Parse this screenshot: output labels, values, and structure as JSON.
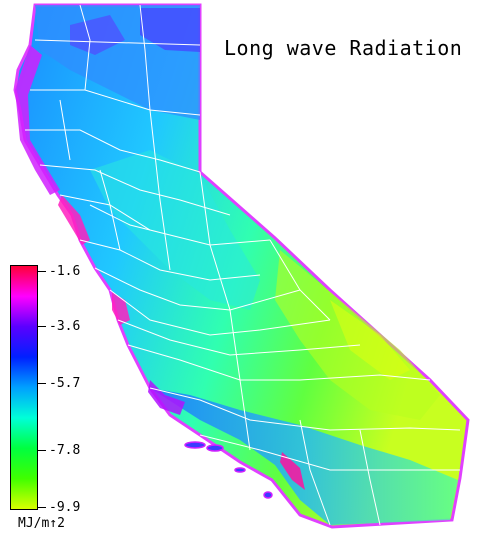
{
  "title": "Long wave Radiation",
  "legend": {
    "ticks": [
      "-1.6",
      "-3.6",
      "-5.7",
      "-7.8",
      "-9.9"
    ],
    "units": "MJ/m↑2",
    "colors": [
      "#ff0038",
      "#ff00ff",
      "#5a00ff",
      "#0020ff",
      "#00a0ff",
      "#00ffd8",
      "#00ff40",
      "#40ff00",
      "#d8ff00"
    ]
  }
}
